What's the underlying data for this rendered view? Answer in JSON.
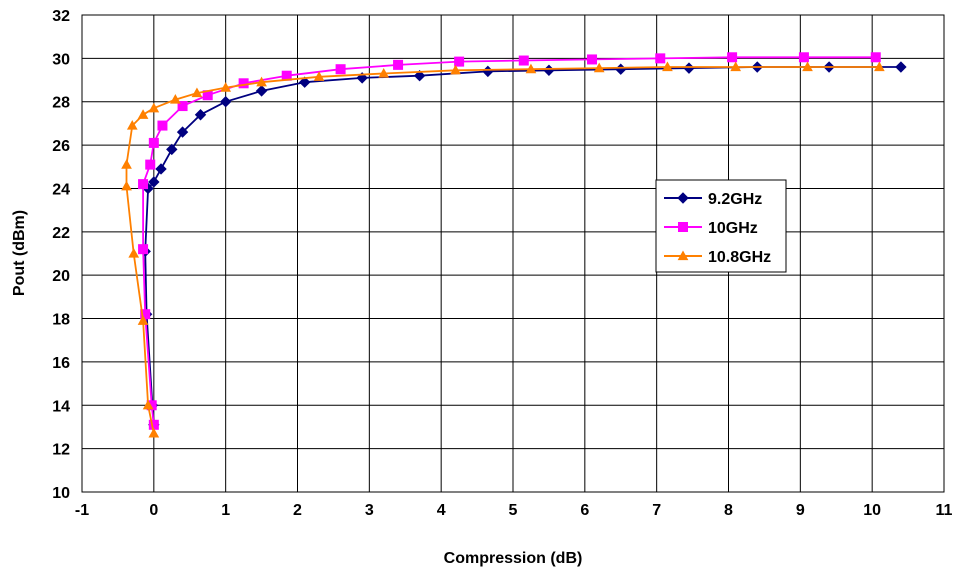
{
  "chart_data": {
    "type": "line",
    "title": "",
    "xlabel": "Compression (dB)",
    "ylabel": "Pout (dBm)",
    "xlim": [
      -1,
      11
    ],
    "ylim": [
      10,
      32
    ],
    "xticks": [
      "-1",
      "0",
      "1",
      "2",
      "3",
      "4",
      "5",
      "6",
      "7",
      "8",
      "9",
      "10",
      "11"
    ],
    "yticks": [
      "10",
      "12",
      "14",
      "16",
      "18",
      "20",
      "22",
      "24",
      "26",
      "28",
      "30",
      "32"
    ],
    "grid": true,
    "legend_position": "right",
    "series": [
      {
        "name": "9.2GHz",
        "color": "#000080",
        "marker": "diamond",
        "points": [
          [
            0.0,
            13.1
          ],
          [
            -0.02,
            14.0
          ],
          [
            -0.1,
            18.2
          ],
          [
            -0.12,
            21.1
          ],
          [
            -0.08,
            24.0
          ],
          [
            0.0,
            24.3
          ],
          [
            0.1,
            24.9
          ],
          [
            0.25,
            25.8
          ],
          [
            0.4,
            26.6
          ],
          [
            0.65,
            27.4
          ],
          [
            1.0,
            28.0
          ],
          [
            1.5,
            28.5
          ],
          [
            2.1,
            28.9
          ],
          [
            2.9,
            29.1
          ],
          [
            3.7,
            29.2
          ],
          [
            4.65,
            29.4
          ],
          [
            5.5,
            29.45
          ],
          [
            6.5,
            29.5
          ],
          [
            7.45,
            29.55
          ],
          [
            8.4,
            29.6
          ],
          [
            9.4,
            29.6
          ],
          [
            10.4,
            29.6
          ]
        ]
      },
      {
        "name": "10GHz",
        "color": "#FF00FF",
        "marker": "square",
        "points": [
          [
            0.0,
            13.1
          ],
          [
            -0.03,
            14.0
          ],
          [
            -0.12,
            18.2
          ],
          [
            -0.15,
            21.2
          ],
          [
            -0.15,
            24.2
          ],
          [
            -0.05,
            25.1
          ],
          [
            0.0,
            26.1
          ],
          [
            0.12,
            26.9
          ],
          [
            0.4,
            27.8
          ],
          [
            0.75,
            28.3
          ],
          [
            1.25,
            28.85
          ],
          [
            1.85,
            29.2
          ],
          [
            2.6,
            29.5
          ],
          [
            3.4,
            29.7
          ],
          [
            4.25,
            29.85
          ],
          [
            5.15,
            29.9
          ],
          [
            6.1,
            29.95
          ],
          [
            7.05,
            30.0
          ],
          [
            8.05,
            30.05
          ],
          [
            9.05,
            30.05
          ],
          [
            10.05,
            30.05
          ]
        ]
      },
      {
        "name": "10.8GHz",
        "color": "#FF8000",
        "marker": "triangle",
        "points": [
          [
            0.0,
            12.7
          ],
          [
            -0.08,
            14.0
          ],
          [
            -0.15,
            17.9
          ],
          [
            -0.28,
            21.0
          ],
          [
            -0.38,
            24.1
          ],
          [
            -0.38,
            25.1
          ],
          [
            -0.3,
            26.9
          ],
          [
            -0.15,
            27.4
          ],
          [
            0.0,
            27.7
          ],
          [
            0.3,
            28.1
          ],
          [
            0.6,
            28.4
          ],
          [
            1.0,
            28.65
          ],
          [
            1.5,
            28.9
          ],
          [
            2.3,
            29.15
          ],
          [
            3.2,
            29.3
          ],
          [
            4.2,
            29.45
          ],
          [
            5.25,
            29.5
          ],
          [
            6.2,
            29.55
          ],
          [
            7.15,
            29.6
          ],
          [
            8.1,
            29.6
          ],
          [
            9.1,
            29.6
          ],
          [
            10.1,
            29.6
          ]
        ]
      }
    ]
  }
}
